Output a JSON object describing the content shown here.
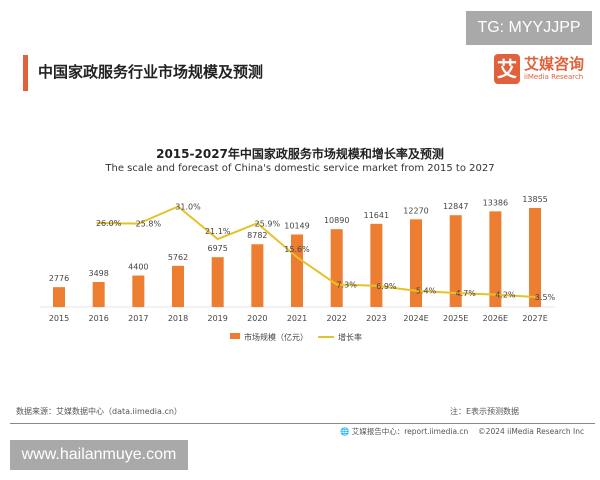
{
  "watermark_top": "TG: MYYJJPP",
  "watermark_bottom": "www.hailanmuye.com",
  "header": {
    "title": "中国家政服务行业市场规模及预测",
    "accent_color": "#e0613c"
  },
  "logo": {
    "mark": "艾",
    "cn": "艾媒咨询",
    "en": "iiMedia Research"
  },
  "footer": {
    "source": "数据来源：艾媒数据中心（data.iimedia.cn）",
    "note": "注：E表示预测数据",
    "report": "🌐 艾媒报告中心：report.iimedia.cn　 ©2024 iiMedia Research Inc"
  },
  "chart_data": {
    "type": "bar+line",
    "title": "2015-2027年中国家政服务市场规模和增长率及预测",
    "subtitle": "The scale and forecast of China's domestic service market from 2015 to 2027",
    "categories": [
      "2015",
      "2016",
      "2017",
      "2018",
      "2019",
      "2020",
      "2021",
      "2022",
      "2023",
      "2024E",
      "2025E",
      "2026E",
      "2027E"
    ],
    "series": [
      {
        "name": "市场规模（亿元）",
        "type": "bar",
        "color": "#ed7d31",
        "values": [
          2776,
          3498,
          4400,
          5762,
          6975,
          8782,
          10149,
          10890,
          11641,
          12270,
          12847,
          13386,
          13855
        ]
      },
      {
        "name": "增长率",
        "type": "line",
        "color": "#e6c229",
        "unit": "%",
        "values": [
          null,
          26.0,
          25.8,
          31.0,
          21.1,
          25.9,
          15.6,
          7.3,
          6.9,
          5.4,
          4.7,
          4.2,
          3.5
        ]
      }
    ],
    "grid": false,
    "legend": "bottom"
  }
}
